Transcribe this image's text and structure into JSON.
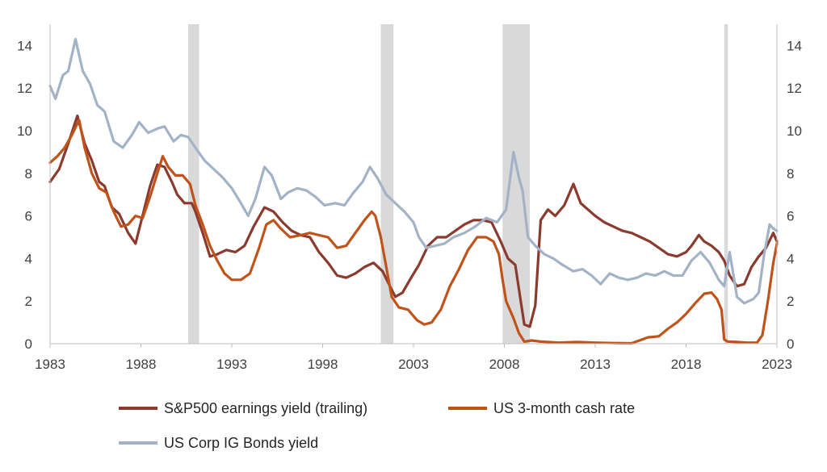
{
  "chart_data": {
    "type": "line",
    "title": "",
    "xlabel": "",
    "ylabel": "",
    "xlim": [
      1983,
      2023
    ],
    "ylim": [
      0,
      15
    ],
    "y_ticks": [
      0,
      2,
      4,
      6,
      8,
      10,
      12,
      14
    ],
    "x_ticks": [
      1983,
      1988,
      1993,
      1998,
      2003,
      2008,
      2013,
      2018,
      2023
    ],
    "secondary_y_axis": true,
    "grid": false,
    "legend_position": "bottom",
    "recessions": [
      [
        1990.6,
        1991.2
      ],
      [
        2001.2,
        2001.9
      ],
      [
        2007.9,
        2009.4
      ],
      [
        2020.1,
        2020.3
      ]
    ],
    "series": [
      {
        "name": "S&P500 earnings yield (trailing)",
        "color": "#8B3A2E",
        "x": [
          1983.0,
          1983.5,
          1984.0,
          1984.5,
          1984.9,
          1985.3,
          1985.7,
          1986.0,
          1986.4,
          1986.8,
          1987.3,
          1987.7,
          1988.0,
          1988.5,
          1988.9,
          1989.3,
          1989.7,
          1990.0,
          1990.4,
          1990.8,
          1991.0,
          1991.4,
          1991.8,
          1992.2,
          1992.7,
          1993.2,
          1993.7,
          1994.2,
          1994.8,
          1995.3,
          1995.8,
          1996.3,
          1996.8,
          1997.3,
          1997.8,
          1998.3,
          1998.8,
          1999.3,
          1999.8,
          2000.3,
          2000.8,
          2001.3,
          2001.7,
          2002.0,
          2002.4,
          2002.8,
          2003.3,
          2003.8,
          2004.3,
          2004.8,
          2005.3,
          2005.8,
          2006.3,
          2006.8,
          2007.3,
          2007.8,
          2008.2,
          2008.6,
          2008.9,
          2009.1,
          2009.4,
          2009.7,
          2010.0,
          2010.4,
          2010.8,
          2011.3,
          2011.8,
          2012.2,
          2012.6,
          2013.0,
          2013.5,
          2014.0,
          2014.5,
          2015.0,
          2015.5,
          2016.0,
          2016.5,
          2017.0,
          2017.5,
          2018.0,
          2018.3,
          2018.7,
          2019.0,
          2019.4,
          2019.8,
          2020.1,
          2020.4,
          2020.8,
          2021.2,
          2021.6,
          2022.0,
          2022.4,
          2022.8,
          2023.0
        ],
        "values": [
          7.6,
          8.2,
          9.4,
          10.7,
          9.4,
          8.6,
          7.6,
          7.4,
          6.4,
          6.1,
          5.2,
          4.7,
          5.7,
          7.4,
          8.4,
          8.3,
          7.6,
          7.0,
          6.6,
          6.6,
          6.2,
          5.2,
          4.1,
          4.2,
          4.4,
          4.3,
          4.6,
          5.5,
          6.4,
          6.2,
          5.7,
          5.3,
          5.1,
          5.0,
          4.3,
          3.8,
          3.2,
          3.1,
          3.3,
          3.6,
          3.8,
          3.4,
          2.7,
          2.2,
          2.4,
          3.0,
          3.7,
          4.6,
          5.0,
          5.0,
          5.3,
          5.6,
          5.8,
          5.8,
          5.7,
          4.8,
          4.0,
          3.7,
          2.0,
          0.9,
          0.8,
          1.8,
          5.8,
          6.3,
          6.0,
          6.5,
          7.5,
          6.6,
          6.3,
          6.0,
          5.7,
          5.5,
          5.3,
          5.2,
          5.0,
          4.8,
          4.5,
          4.2,
          4.1,
          4.3,
          4.6,
          5.1,
          4.8,
          4.6,
          4.3,
          3.9,
          3.2,
          2.7,
          2.8,
          3.6,
          4.1,
          4.5,
          5.2,
          4.8
        ]
      },
      {
        "name": "US 3-month cash rate",
        "color": "#C0531A",
        "x": [
          1983.0,
          1983.4,
          1983.8,
          1984.2,
          1984.6,
          1984.9,
          1985.3,
          1985.7,
          1986.1,
          1986.5,
          1986.9,
          1987.3,
          1987.7,
          1988.1,
          1988.5,
          1988.9,
          1989.2,
          1989.5,
          1989.9,
          1990.3,
          1990.7,
          1991.0,
          1991.4,
          1991.8,
          1992.2,
          1992.6,
          1993.0,
          1993.5,
          1994.0,
          1994.5,
          1994.9,
          1995.3,
          1995.7,
          1996.2,
          1996.8,
          1997.3,
          1997.8,
          1998.3,
          1998.8,
          1999.3,
          1999.8,
          2000.3,
          2000.7,
          2000.9,
          2001.2,
          2001.5,
          2001.8,
          2002.2,
          2002.7,
          2003.2,
          2003.6,
          2004.0,
          2004.5,
          2005.0,
          2005.5,
          2006.0,
          2006.5,
          2007.0,
          2007.4,
          2007.7,
          2007.9,
          2008.1,
          2008.3,
          2008.5,
          2008.8,
          2009.1,
          2009.5,
          2010.0,
          2011.0,
          2012.0,
          2013.0,
          2014.0,
          2015.0,
          2015.9,
          2016.5,
          2017.0,
          2017.5,
          2018.0,
          2018.5,
          2019.0,
          2019.4,
          2019.7,
          2019.95,
          2020.1,
          2020.3,
          2020.8,
          2021.4,
          2021.9,
          2022.2,
          2022.5,
          2022.8,
          2023.0
        ],
        "values": [
          8.5,
          8.8,
          9.2,
          9.8,
          10.5,
          9.2,
          8.0,
          7.3,
          7.1,
          6.2,
          5.5,
          5.6,
          6.0,
          5.9,
          6.9,
          8.0,
          8.8,
          8.3,
          7.9,
          7.9,
          7.5,
          6.5,
          5.6,
          4.6,
          3.9,
          3.3,
          3.0,
          3.0,
          3.3,
          4.5,
          5.6,
          5.8,
          5.4,
          5.0,
          5.1,
          5.2,
          5.1,
          5.0,
          4.5,
          4.6,
          5.2,
          5.8,
          6.2,
          6.0,
          5.0,
          3.6,
          2.2,
          1.7,
          1.6,
          1.1,
          0.9,
          1.0,
          1.6,
          2.7,
          3.5,
          4.4,
          5.0,
          5.0,
          4.8,
          4.2,
          3.0,
          2.0,
          1.6,
          1.2,
          0.5,
          0.1,
          0.15,
          0.1,
          0.05,
          0.08,
          0.05,
          0.03,
          0.02,
          0.3,
          0.35,
          0.7,
          1.0,
          1.4,
          1.9,
          2.35,
          2.4,
          2.1,
          1.6,
          0.2,
          0.1,
          0.08,
          0.05,
          0.05,
          0.4,
          2.0,
          3.8,
          4.7
        ]
      },
      {
        "name": "US Corp IG Bonds yield",
        "color": "#A3B3C7",
        "x": [
          1983.0,
          1983.3,
          1983.7,
          1984.0,
          1984.4,
          1984.8,
          1985.2,
          1985.6,
          1986.0,
          1986.5,
          1987.0,
          1987.5,
          1987.9,
          1988.4,
          1988.9,
          1989.3,
          1989.8,
          1990.2,
          1990.6,
          1991.0,
          1991.5,
          1992.0,
          1992.5,
          1993.0,
          1993.5,
          1993.9,
          1994.3,
          1994.8,
          1995.2,
          1995.7,
          1996.1,
          1996.6,
          1997.1,
          1997.6,
          1998.1,
          1998.7,
          1999.2,
          1999.7,
          2000.2,
          2000.6,
          2001.0,
          2001.5,
          2002.0,
          2002.5,
          2003.0,
          2003.3,
          2003.7,
          2004.2,
          2004.7,
          2005.2,
          2005.8,
          2006.4,
          2007.0,
          2007.6,
          2008.1,
          2008.5,
          2008.8,
          2009.0,
          2009.3,
          2009.7,
          2010.2,
          2010.7,
          2011.2,
          2011.8,
          2012.3,
          2012.8,
          2013.3,
          2013.8,
          2014.3,
          2014.8,
          2015.3,
          2015.8,
          2016.3,
          2016.8,
          2017.3,
          2017.8,
          2018.3,
          2018.8,
          2019.3,
          2019.8,
          2020.1,
          2020.4,
          2020.8,
          2021.2,
          2021.7,
          2022.0,
          2022.3,
          2022.6,
          2022.8,
          2023.0
        ],
        "values": [
          12.1,
          11.5,
          12.6,
          12.8,
          14.3,
          12.8,
          12.2,
          11.2,
          10.9,
          9.5,
          9.2,
          9.8,
          10.4,
          9.9,
          10.1,
          10.2,
          9.5,
          9.8,
          9.7,
          9.2,
          8.6,
          8.2,
          7.8,
          7.3,
          6.6,
          6.0,
          6.8,
          8.3,
          7.9,
          6.8,
          7.1,
          7.3,
          7.2,
          6.9,
          6.5,
          6.6,
          6.5,
          7.1,
          7.6,
          8.3,
          7.8,
          7.0,
          6.6,
          6.2,
          5.7,
          5.0,
          4.5,
          4.6,
          4.7,
          5.0,
          5.2,
          5.5,
          5.9,
          5.7,
          6.3,
          9.0,
          7.8,
          7.2,
          5.0,
          4.6,
          4.2,
          4.0,
          3.7,
          3.4,
          3.5,
          3.2,
          2.8,
          3.3,
          3.1,
          3.0,
          3.1,
          3.3,
          3.2,
          3.4,
          3.2,
          3.2,
          3.9,
          4.3,
          3.8,
          3.0,
          2.7,
          4.3,
          2.2,
          1.9,
          2.1,
          2.4,
          4.2,
          5.6,
          5.4,
          5.3
        ]
      }
    ]
  }
}
